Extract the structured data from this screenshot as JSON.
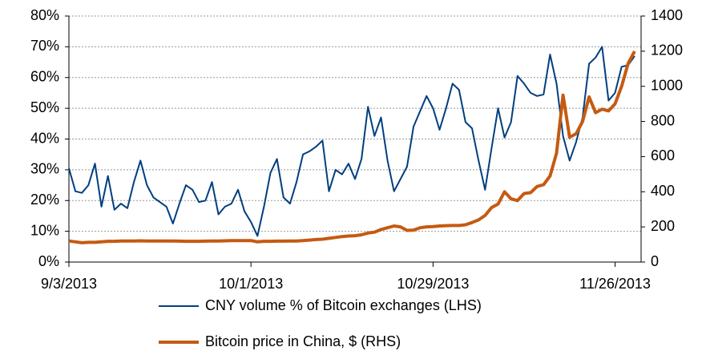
{
  "chart_data": {
    "type": "line",
    "x": [
      "9/3/2013",
      "9/4/2013",
      "9/5/2013",
      "9/6/2013",
      "9/7/2013",
      "9/8/2013",
      "9/9/2013",
      "9/10/2013",
      "9/11/2013",
      "9/12/2013",
      "9/13/2013",
      "9/14/2013",
      "9/15/2013",
      "9/16/2013",
      "9/17/2013",
      "9/18/2013",
      "9/19/2013",
      "9/20/2013",
      "9/21/2013",
      "9/22/2013",
      "9/23/2013",
      "9/24/2013",
      "9/25/2013",
      "9/26/2013",
      "9/27/2013",
      "9/28/2013",
      "9/29/2013",
      "9/30/2013",
      "10/1/2013",
      "10/2/2013",
      "10/3/2013",
      "10/4/2013",
      "10/5/2013",
      "10/6/2013",
      "10/7/2013",
      "10/8/2013",
      "10/9/2013",
      "10/10/2013",
      "10/11/2013",
      "10/12/2013",
      "10/13/2013",
      "10/14/2013",
      "10/15/2013",
      "10/16/2013",
      "10/17/2013",
      "10/18/2013",
      "10/19/2013",
      "10/20/2013",
      "10/21/2013",
      "10/22/2013",
      "10/23/2013",
      "10/24/2013",
      "10/25/2013",
      "10/26/2013",
      "10/27/2013",
      "10/28/2013",
      "10/29/2013",
      "10/30/2013",
      "10/31/2013",
      "11/1/2013",
      "11/2/2013",
      "11/3/2013",
      "11/4/2013",
      "11/5/2013",
      "11/6/2013",
      "11/7/2013",
      "11/8/2013",
      "11/9/2013",
      "11/10/2013",
      "11/11/2013",
      "11/12/2013",
      "11/13/2013",
      "11/14/2013",
      "11/15/2013",
      "11/16/2013",
      "11/17/2013",
      "11/18/2013",
      "11/19/2013",
      "11/20/2013",
      "11/21/2013",
      "11/22/2013",
      "11/23/2013",
      "11/24/2013",
      "11/25/2013",
      "11/26/2013",
      "11/27/2013",
      "11/28/2013",
      "11/29/2013"
    ],
    "series": [
      {
        "name": "CNY volume % of Bitcoin exchanges (LHS)",
        "color": "#003f7f",
        "axis": "y",
        "values": [
          30.5,
          23,
          22.5,
          25,
          32,
          18,
          28,
          17,
          19,
          17.5,
          26,
          33,
          25,
          21,
          19.5,
          18,
          12.5,
          19,
          25,
          23.5,
          19.5,
          20,
          26,
          15.5,
          18,
          19,
          23.5,
          16.5,
          13,
          8.5,
          18,
          29,
          33.5,
          21,
          19,
          26,
          35,
          36,
          37.5,
          39.5,
          23,
          30,
          28.5,
          32,
          27,
          33.5,
          50.5,
          41,
          47,
          33,
          23,
          27,
          31,
          44,
          49,
          54,
          50,
          43,
          50,
          58,
          56,
          45.5,
          43.5,
          33,
          23.5,
          37,
          50,
          40.5,
          45.5,
          60.5,
          58,
          55,
          54,
          54.5,
          67.5,
          58,
          41,
          33,
          39,
          47,
          64.5,
          66.5,
          70,
          52.5,
          55,
          63.5,
          64,
          67
        ]
      },
      {
        "name": "Bitcoin price in China, $ (RHS)",
        "color": "#c55a11",
        "axis": "y2",
        "values": [
          120,
          115,
          110,
          112,
          112,
          115,
          118,
          118,
          120,
          120,
          120,
          121,
          120,
          120,
          120,
          120,
          120,
          119,
          118,
          118,
          118,
          119,
          120,
          120,
          121,
          122,
          122,
          122,
          122,
          115,
          118,
          118,
          119,
          119,
          120,
          120,
          122,
          125,
          128,
          130,
          135,
          140,
          145,
          148,
          150,
          155,
          165,
          170,
          185,
          195,
          205,
          200,
          180,
          182,
          195,
          200,
          202,
          205,
          207,
          208,
          208,
          212,
          225,
          240,
          265,
          310,
          330,
          400,
          360,
          350,
          390,
          395,
          430,
          440,
          490,
          620,
          950,
          710,
          730,
          800,
          940,
          850,
          870,
          860,
          900,
          1000,
          1130,
          1200
        ]
      }
    ],
    "xlim": [
      "9/3/2013",
      "11/30/2013"
    ],
    "xticks": [
      "9/3/2013",
      "10/1/2013",
      "10/29/2013",
      "11/26/2013"
    ],
    "ylim": [
      0,
      80
    ],
    "yticks": [
      {
        "value": 0,
        "label": "0%"
      },
      {
        "value": 10,
        "label": "10%"
      },
      {
        "value": 20,
        "label": "20%"
      },
      {
        "value": 30,
        "label": "30%"
      },
      {
        "value": 40,
        "label": "40%"
      },
      {
        "value": 50,
        "label": "50%"
      },
      {
        "value": 60,
        "label": "60%"
      },
      {
        "value": 70,
        "label": "70%"
      },
      {
        "value": 80,
        "label": "80%"
      }
    ],
    "y2lim": [
      0,
      1400
    ],
    "y2ticks": [
      0,
      200,
      400,
      600,
      800,
      1000,
      1200,
      1400
    ],
    "grid": true,
    "legend": "bottom"
  }
}
